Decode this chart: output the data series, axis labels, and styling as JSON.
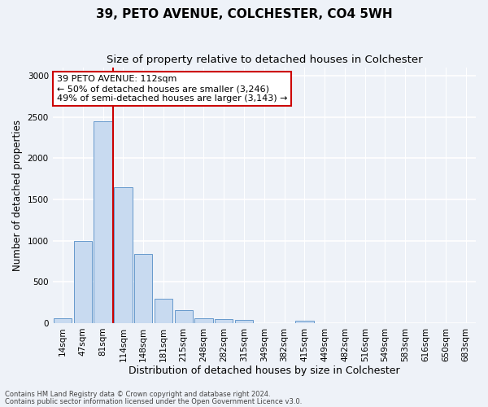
{
  "title": "39, PETO AVENUE, COLCHESTER, CO4 5WH",
  "subtitle": "Size of property relative to detached houses in Colchester",
  "xlabel": "Distribution of detached houses by size in Colchester",
  "ylabel": "Number of detached properties",
  "bar_labels": [
    "14sqm",
    "47sqm",
    "81sqm",
    "114sqm",
    "148sqm",
    "181sqm",
    "215sqm",
    "248sqm",
    "282sqm",
    "315sqm",
    "349sqm",
    "382sqm",
    "415sqm",
    "449sqm",
    "482sqm",
    "516sqm",
    "549sqm",
    "583sqm",
    "616sqm",
    "650sqm",
    "683sqm"
  ],
  "bar_values": [
    60,
    1000,
    2450,
    1650,
    840,
    300,
    155,
    60,
    45,
    35,
    0,
    0,
    25,
    0,
    0,
    0,
    0,
    0,
    0,
    0,
    0
  ],
  "bar_color": "#c8daf0",
  "bar_edge_color": "#6699cc",
  "vline_x_index": 2.48,
  "vline_color": "#cc0000",
  "annotation_text": "39 PETO AVENUE: 112sqm\n← 50% of detached houses are smaller (3,246)\n49% of semi-detached houses are larger (3,143) →",
  "annotation_box_color": "#ffffff",
  "annotation_box_edge": "#cc0000",
  "ylim": [
    0,
    3100
  ],
  "footer1": "Contains HM Land Registry data © Crown copyright and database right 2024.",
  "footer2": "Contains public sector information licensed under the Open Government Licence v3.0.",
  "bg_color": "#eef2f8",
  "plot_bg_color": "#eef2f8",
  "grid_color": "#ffffff",
  "title_fontsize": 11,
  "subtitle_fontsize": 9.5,
  "tick_fontsize": 7.5,
  "ylabel_fontsize": 8.5,
  "xlabel_fontsize": 9,
  "annotation_fontsize": 8,
  "footer_fontsize": 6
}
